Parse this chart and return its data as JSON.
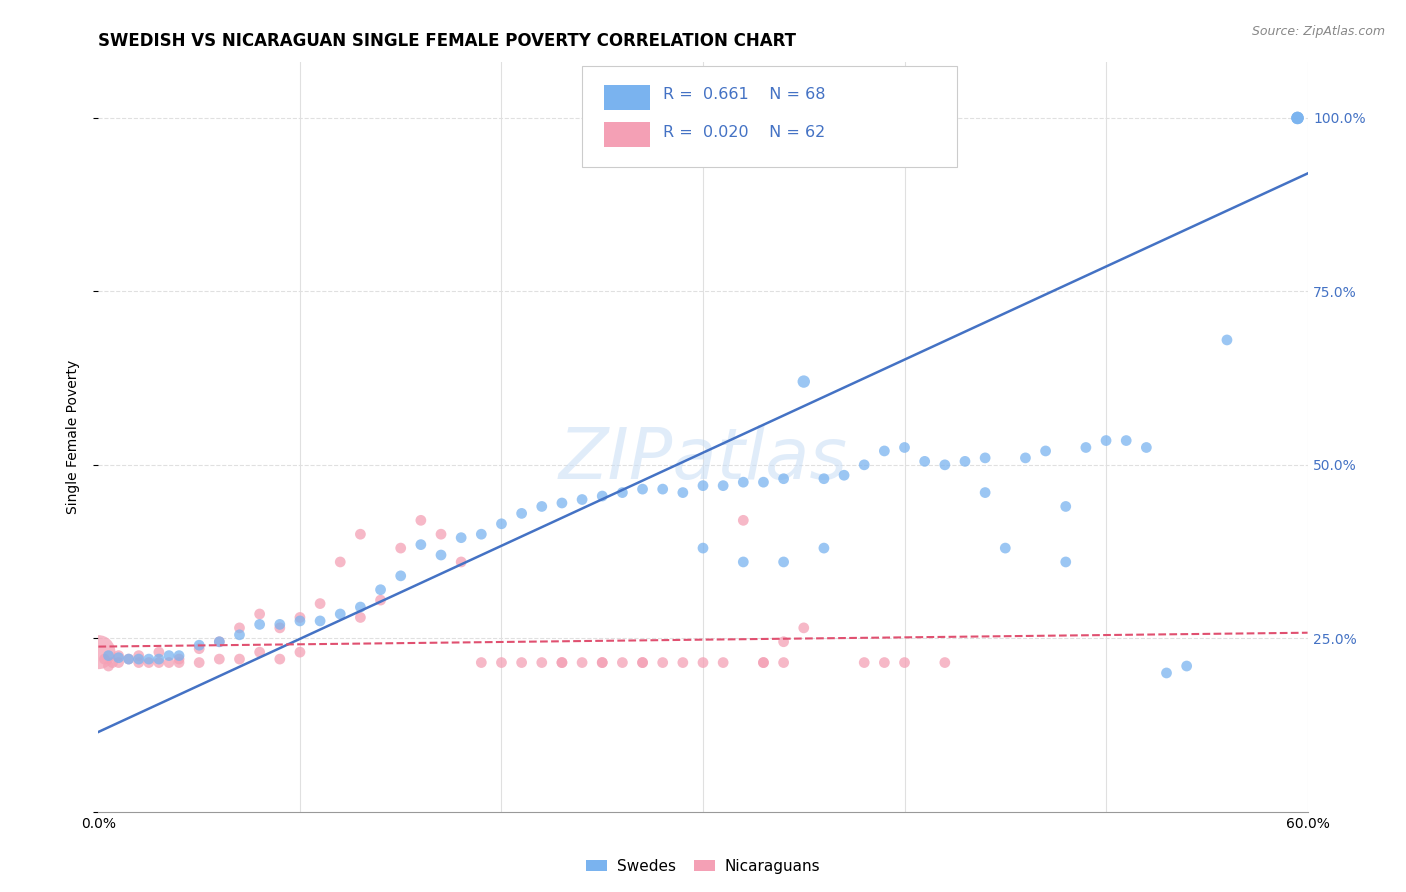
{
  "title": "SWEDISH VS NICARAGUAN SINGLE FEMALE POVERTY CORRELATION CHART",
  "source": "Source: ZipAtlas.com",
  "ylabel": "Single Female Poverty",
  "xlim": [
    0.0,
    0.6
  ],
  "ylim": [
    0.0,
    1.08
  ],
  "watermark": "ZIPatlas",
  "legend_blue_R": "0.661",
  "legend_blue_N": "68",
  "legend_pink_R": "0.020",
  "legend_pink_N": "62",
  "blue_color": "#7ab3ef",
  "pink_color": "#f4a0b5",
  "blue_line_color": "#4472c4",
  "pink_line_color": "#e05070",
  "blue_trendline_x": [
    0.0,
    0.6
  ],
  "blue_trendline_y": [
    0.115,
    0.92
  ],
  "pink_trendline_x": [
    0.0,
    0.6
  ],
  "pink_trendline_y": [
    0.238,
    0.258
  ],
  "grid_color": "#e0e0e0",
  "background_color": "#ffffff",
  "title_fontsize": 12,
  "axis_label_fontsize": 10,
  "tick_fontsize": 10,
  "watermark_fontsize": 52,
  "watermark_color": "#c8ddf5",
  "watermark_alpha": 0.55,
  "blue_x": [
    0.005,
    0.01,
    0.015,
    0.02,
    0.025,
    0.03,
    0.035,
    0.04,
    0.05,
    0.06,
    0.07,
    0.08,
    0.09,
    0.1,
    0.11,
    0.12,
    0.13,
    0.14,
    0.15,
    0.16,
    0.17,
    0.18,
    0.19,
    0.2,
    0.21,
    0.22,
    0.23,
    0.24,
    0.25,
    0.26,
    0.27,
    0.28,
    0.29,
    0.3,
    0.31,
    0.32,
    0.33,
    0.34,
    0.35,
    0.36,
    0.37,
    0.38,
    0.39,
    0.4,
    0.41,
    0.42,
    0.43,
    0.44,
    0.45,
    0.46,
    0.47,
    0.48,
    0.49,
    0.5,
    0.51,
    0.52,
    0.53,
    0.54,
    0.3,
    0.32,
    0.34,
    0.36,
    0.44,
    0.48,
    0.56,
    0.595,
    0.595,
    0.595
  ],
  "blue_y": [
    0.225,
    0.222,
    0.22,
    0.22,
    0.22,
    0.22,
    0.225,
    0.225,
    0.24,
    0.245,
    0.255,
    0.27,
    0.27,
    0.275,
    0.275,
    0.285,
    0.295,
    0.32,
    0.34,
    0.385,
    0.37,
    0.395,
    0.4,
    0.415,
    0.43,
    0.44,
    0.445,
    0.45,
    0.455,
    0.46,
    0.465,
    0.465,
    0.46,
    0.47,
    0.47,
    0.475,
    0.475,
    0.48,
    0.62,
    0.48,
    0.485,
    0.5,
    0.52,
    0.525,
    0.505,
    0.5,
    0.505,
    0.51,
    0.38,
    0.51,
    0.52,
    0.36,
    0.525,
    0.535,
    0.535,
    0.525,
    0.2,
    0.21,
    0.38,
    0.36,
    0.36,
    0.38,
    0.46,
    0.44,
    0.68,
    1.0,
    1.0,
    1.0
  ],
  "blue_sizes": [
    60,
    60,
    60,
    60,
    60,
    60,
    60,
    60,
    60,
    60,
    60,
    60,
    60,
    60,
    60,
    60,
    60,
    60,
    60,
    60,
    60,
    60,
    60,
    60,
    60,
    60,
    60,
    60,
    60,
    60,
    60,
    60,
    60,
    60,
    60,
    60,
    60,
    60,
    80,
    60,
    60,
    60,
    60,
    60,
    60,
    60,
    60,
    60,
    60,
    60,
    60,
    60,
    60,
    60,
    60,
    60,
    60,
    60,
    60,
    60,
    60,
    60,
    60,
    60,
    60,
    80,
    80,
    80
  ],
  "pink_x": [
    0.0,
    0.003,
    0.005,
    0.007,
    0.01,
    0.01,
    0.015,
    0.02,
    0.02,
    0.025,
    0.03,
    0.03,
    0.035,
    0.04,
    0.04,
    0.05,
    0.05,
    0.06,
    0.06,
    0.07,
    0.07,
    0.08,
    0.08,
    0.09,
    0.09,
    0.1,
    0.1,
    0.11,
    0.12,
    0.13,
    0.13,
    0.14,
    0.15,
    0.16,
    0.17,
    0.18,
    0.19,
    0.2,
    0.21,
    0.22,
    0.23,
    0.24,
    0.25,
    0.26,
    0.27,
    0.28,
    0.29,
    0.3,
    0.31,
    0.32,
    0.33,
    0.34,
    0.35,
    0.23,
    0.25,
    0.27,
    0.33,
    0.34,
    0.38,
    0.39,
    0.4,
    0.42
  ],
  "pink_y": [
    0.23,
    0.22,
    0.21,
    0.215,
    0.225,
    0.215,
    0.22,
    0.225,
    0.215,
    0.215,
    0.23,
    0.215,
    0.215,
    0.22,
    0.215,
    0.235,
    0.215,
    0.245,
    0.22,
    0.265,
    0.22,
    0.285,
    0.23,
    0.265,
    0.22,
    0.28,
    0.23,
    0.3,
    0.36,
    0.4,
    0.28,
    0.305,
    0.38,
    0.42,
    0.4,
    0.36,
    0.215,
    0.215,
    0.215,
    0.215,
    0.215,
    0.215,
    0.215,
    0.215,
    0.215,
    0.215,
    0.215,
    0.215,
    0.215,
    0.42,
    0.215,
    0.245,
    0.265,
    0.215,
    0.215,
    0.215,
    0.215,
    0.215,
    0.215,
    0.215,
    0.215,
    0.215
  ],
  "pink_sizes": [
    600,
    60,
    60,
    60,
    60,
    60,
    60,
    60,
    60,
    60,
    60,
    60,
    60,
    60,
    60,
    60,
    60,
    60,
    60,
    60,
    60,
    60,
    60,
    60,
    60,
    60,
    60,
    60,
    60,
    60,
    60,
    60,
    60,
    60,
    60,
    60,
    60,
    60,
    60,
    60,
    60,
    60,
    60,
    60,
    60,
    60,
    60,
    60,
    60,
    60,
    60,
    60,
    60,
    60,
    60,
    60,
    60,
    60,
    60,
    60,
    60,
    60
  ]
}
